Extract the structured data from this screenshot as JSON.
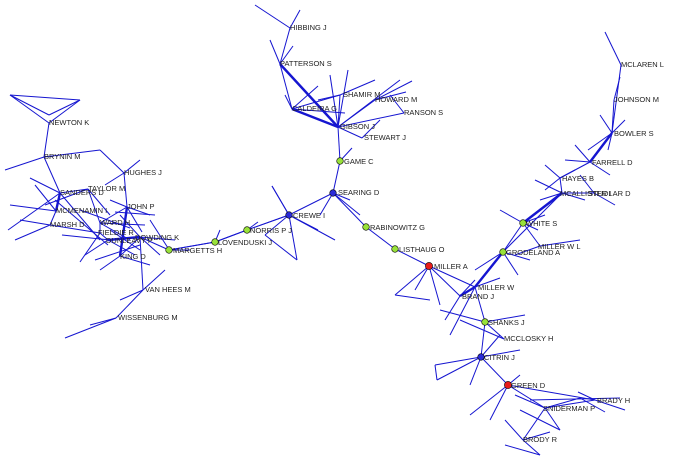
{
  "colors": {
    "edge": "#1515d0",
    "node_blue": "#2a2ad8",
    "node_green": "#99e23a",
    "node_red": "#e81c1c",
    "label": "#222222"
  },
  "nodes": [
    {
      "id": "hibbing",
      "label": "HIBBING J"
    },
    {
      "id": "patterson",
      "label": "PATTERSON S"
    },
    {
      "id": "shamir",
      "label": "SHAMIR M"
    },
    {
      "id": "howard",
      "label": "HOWARD M"
    },
    {
      "id": "caldeira",
      "label": "CALDEIRA G"
    },
    {
      "id": "ranson",
      "label": "RANSON S"
    },
    {
      "id": "gibson",
      "label": "GIBSON J"
    },
    {
      "id": "stewart",
      "label": "STEWART J"
    },
    {
      "id": "game",
      "label": "GAME C",
      "color": "green"
    },
    {
      "id": "newton",
      "label": "NEWTON K"
    },
    {
      "id": "brynin",
      "label": "BRYNIN M"
    },
    {
      "id": "hughes",
      "label": "HUGHES J"
    },
    {
      "id": "sanders",
      "label": "SANDERS D"
    },
    {
      "id": "taylor",
      "label": "TAYLOR M"
    },
    {
      "id": "mcmenamin",
      "label": "MCMENAMIN I"
    },
    {
      "id": "john",
      "label": "JOHN P"
    },
    {
      "id": "marsh",
      "label": "MARSH D"
    },
    {
      "id": "ward",
      "label": "WARD H"
    },
    {
      "id": "fieldie",
      "label": "FIELDIE R"
    },
    {
      "id": "dunleavy",
      "label": "DUNLEAVY P"
    },
    {
      "id": "dowding",
      "label": "DOWDING K"
    },
    {
      "id": "king",
      "label": "KING D"
    },
    {
      "id": "margetts",
      "label": "MARGETTS H",
      "color": "green"
    },
    {
      "id": "vanhees",
      "label": "VAN HEES M"
    },
    {
      "id": "wissenburg",
      "label": "WISSENBURG M"
    },
    {
      "id": "lovenduski",
      "label": "LOVENDUSKI J",
      "color": "green"
    },
    {
      "id": "norris",
      "label": "NORRIS P J",
      "color": "green"
    },
    {
      "id": "crewe",
      "label": "CREWE I",
      "color": "blue"
    },
    {
      "id": "searing",
      "label": "SEARING D",
      "color": "blue"
    },
    {
      "id": "rabinowitz",
      "label": "RABINOWITZ G",
      "color": "green"
    },
    {
      "id": "listhaug",
      "label": "LISTHAUG O",
      "color": "green"
    },
    {
      "id": "millera",
      "label": "MILLER A",
      "color": "red"
    },
    {
      "id": "millerw",
      "label": "MILLER W"
    },
    {
      "id": "brandj",
      "label": "BRAND J"
    },
    {
      "id": "shanks",
      "label": "SHANKS J",
      "color": "green"
    },
    {
      "id": "mcclosky",
      "label": "MCCLOSKY H"
    },
    {
      "id": "citrin",
      "label": "CITRIN J",
      "color": "blue"
    },
    {
      "id": "green",
      "label": "GREEN D",
      "color": "red"
    },
    {
      "id": "brady",
      "label": "BRADY H"
    },
    {
      "id": "sniderman",
      "label": "SNIDERMAN P"
    },
    {
      "id": "brody",
      "label": "BRODY R"
    },
    {
      "id": "mclaren",
      "label": "MCLAREN L"
    },
    {
      "id": "johnson",
      "label": "JOHNSON M"
    },
    {
      "id": "bowler",
      "label": "BOWLER S"
    },
    {
      "id": "farrell",
      "label": "FARRELL D"
    },
    {
      "id": "hayes",
      "label": "HAYES B"
    },
    {
      "id": "mcallister",
      "label": "MCALLISTER I"
    },
    {
      "id": "studlar",
      "label": "STUDLAR D"
    },
    {
      "id": "white",
      "label": "WHITE S",
      "color": "green"
    },
    {
      "id": "millerwl",
      "label": "MILLER W L"
    },
    {
      "id": "grodeland",
      "label": "GRODELAND A",
      "color": "green"
    }
  ]
}
